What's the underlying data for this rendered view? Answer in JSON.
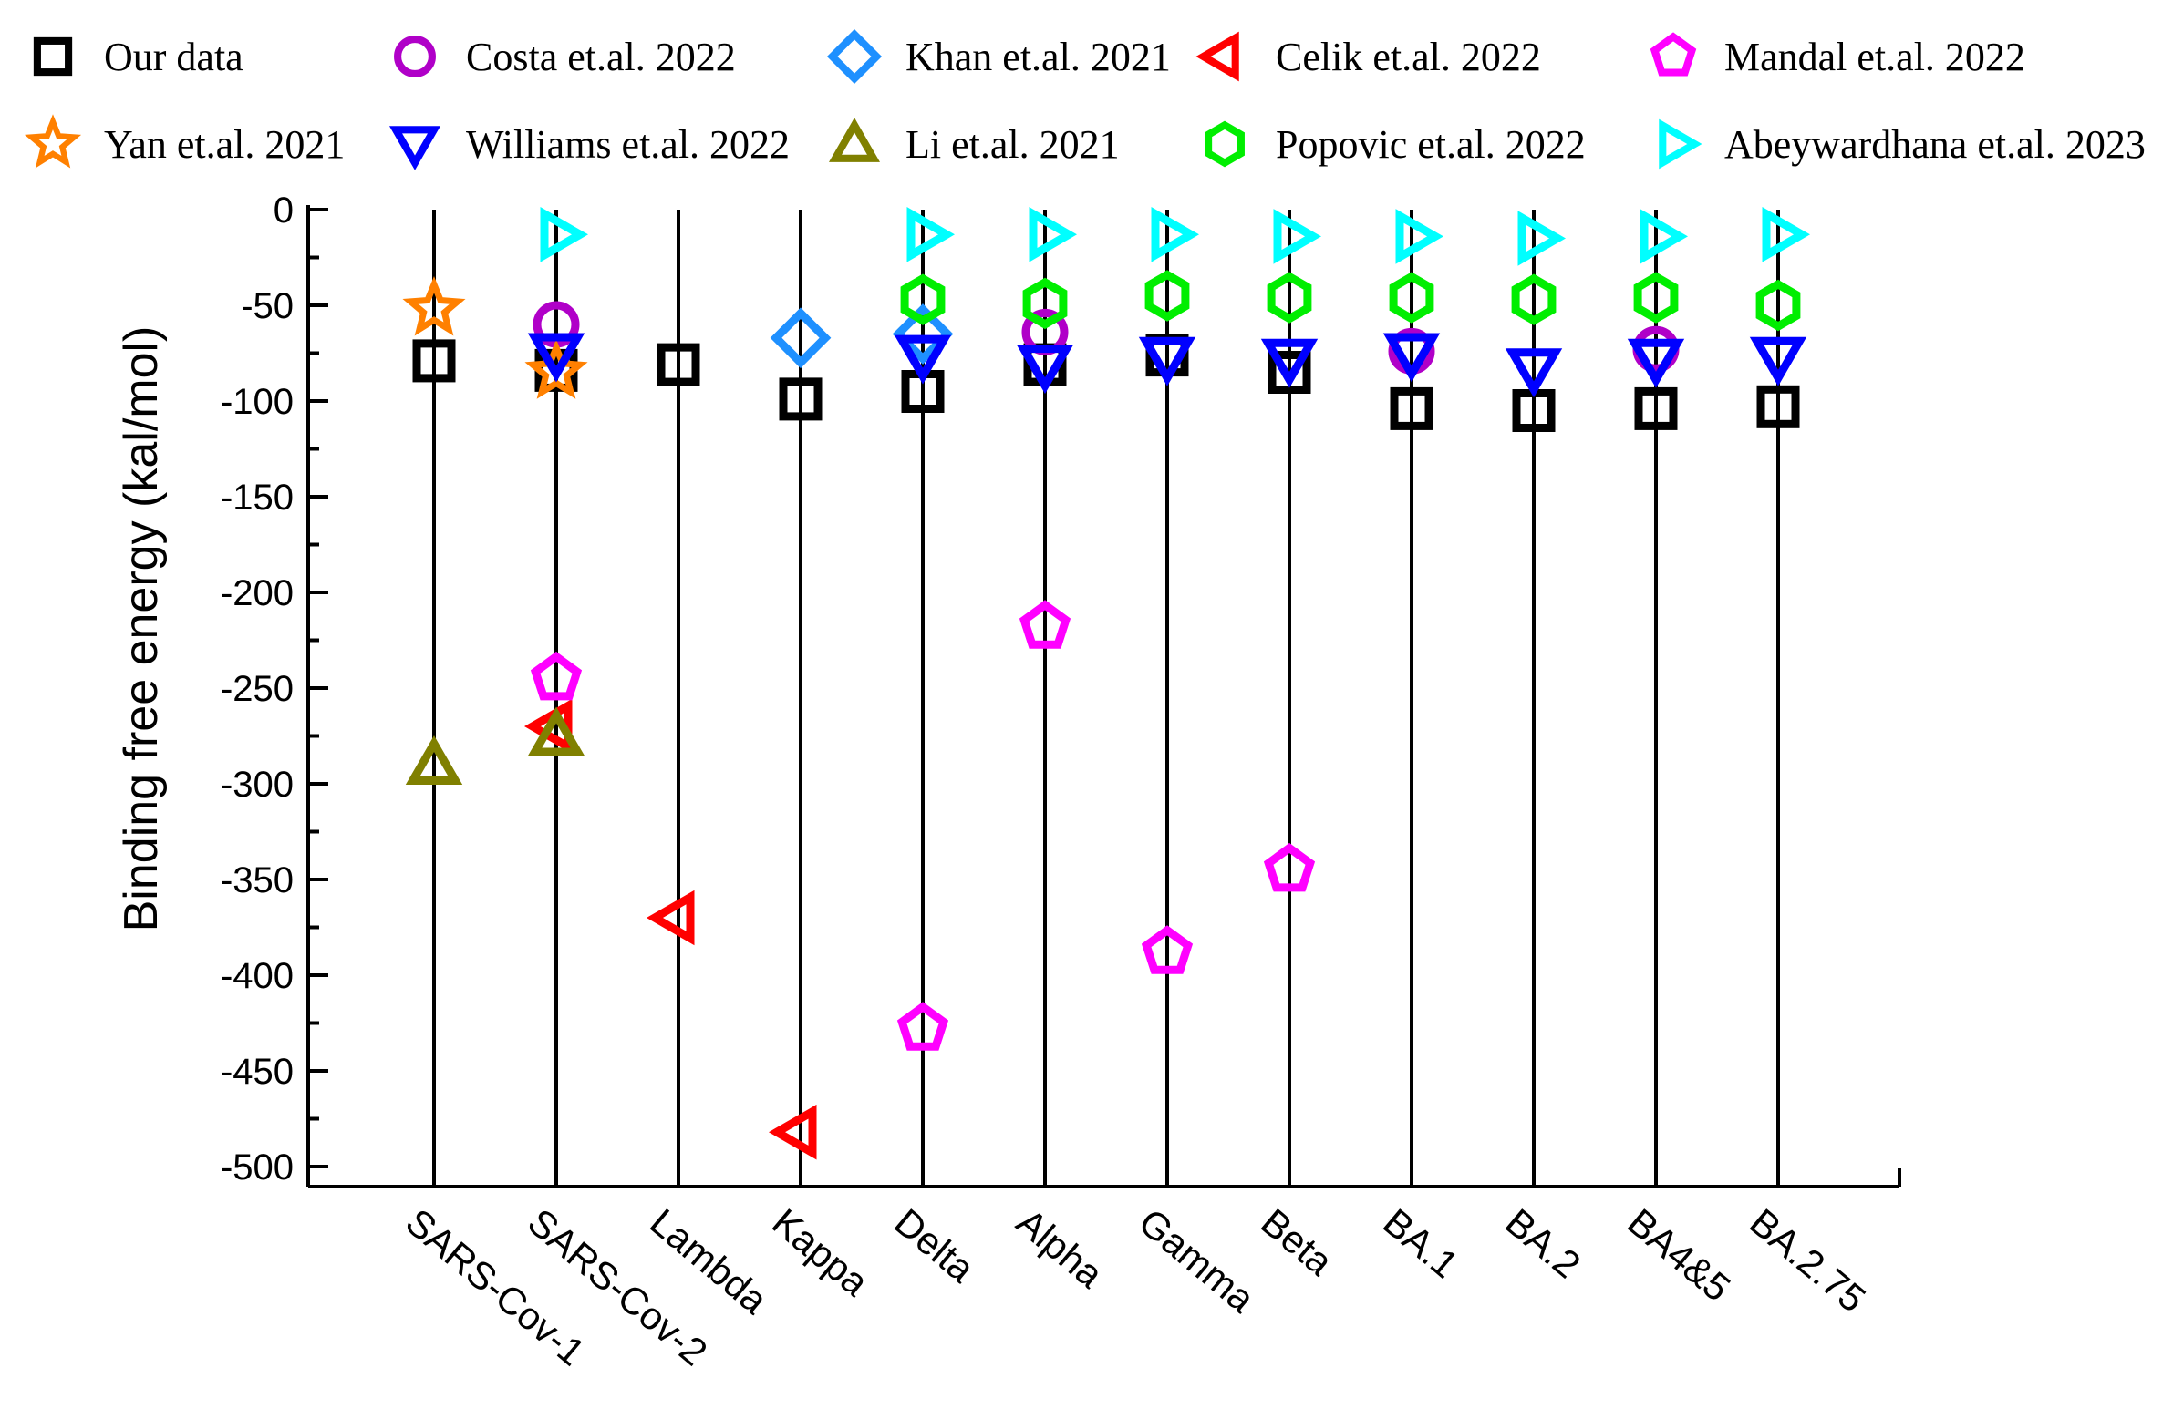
{
  "chart_data": {
    "type": "scatter",
    "title": "",
    "xlabel": "",
    "ylabel": "Binding free energy (kal/mol)",
    "ylim": [
      -510,
      0
    ],
    "yticks": [
      0,
      -50,
      -100,
      -150,
      -200,
      -250,
      -300,
      -350,
      -400,
      -450,
      -500
    ],
    "categories": [
      "SARS-Cov-1",
      "SARS-Cov-2",
      "Lambda",
      "Kappa",
      "Delta",
      "Alpha",
      "Gamma",
      "Beta",
      "BA.1",
      "BA.2",
      "BA4&5",
      "BA.2.75"
    ],
    "legend_position": "top",
    "series": [
      {
        "name": "Our data",
        "marker": "square",
        "color": "#000000",
        "values": [
          -79,
          -84,
          -81,
          -99,
          -95,
          -81,
          -76,
          -85,
          -104,
          -105,
          -104,
          -103
        ]
      },
      {
        "name": "Costa et.al. 2022",
        "marker": "circle",
        "color": "#b000c8",
        "values": [
          null,
          -60,
          null,
          null,
          null,
          -64,
          null,
          null,
          -74,
          null,
          -73,
          null
        ]
      },
      {
        "name": "Khan et.al. 2021",
        "marker": "diamond",
        "color": "#1e90ff",
        "values": [
          null,
          null,
          null,
          -67,
          -65,
          null,
          null,
          null,
          null,
          null,
          null,
          null
        ]
      },
      {
        "name": "Celik et.al. 2022",
        "marker": "triangle-left",
        "color": "#ff0000",
        "values": [
          null,
          -270,
          -370,
          -482,
          null,
          null,
          null,
          null,
          null,
          null,
          null,
          null
        ]
      },
      {
        "name": "Mandal et.al. 2022",
        "marker": "pentagon",
        "color": "#ff00ff",
        "values": [
          null,
          -245,
          null,
          null,
          -428,
          -218,
          -388,
          -345,
          null,
          null,
          null,
          null
        ]
      },
      {
        "name": "Yan et.al. 2021",
        "marker": "star",
        "color": "#ff8000",
        "values": [
          -52,
          -85,
          null,
          null,
          null,
          null,
          null,
          null,
          null,
          null,
          null,
          null
        ]
      },
      {
        "name": "Williams et.al. 2022",
        "marker": "triangle-down",
        "color": "#0000ff",
        "values": [
          null,
          -75,
          null,
          null,
          -76,
          -81,
          -77,
          -78,
          -75,
          -83,
          -78,
          -77
        ]
      },
      {
        "name": "Li et.al. 2021",
        "marker": "triangle-up",
        "color": "#808000",
        "values": [
          -290,
          -275,
          null,
          null,
          null,
          null,
          null,
          null,
          null,
          null,
          null,
          null
        ]
      },
      {
        "name": "Popovic et.al. 2022",
        "marker": "hexagon",
        "color": "#00ee00",
        "values": [
          null,
          null,
          null,
          null,
          -47,
          -49,
          -45,
          -46,
          -46,
          -47,
          -46,
          -50
        ]
      },
      {
        "name": "Abeywardhana et.al. 2023",
        "marker": "triangle-right",
        "color": "#00ffff",
        "values": [
          null,
          -13,
          null,
          null,
          -13,
          -13,
          -13,
          -14,
          -14,
          -15,
          -14,
          -13
        ]
      }
    ]
  }
}
